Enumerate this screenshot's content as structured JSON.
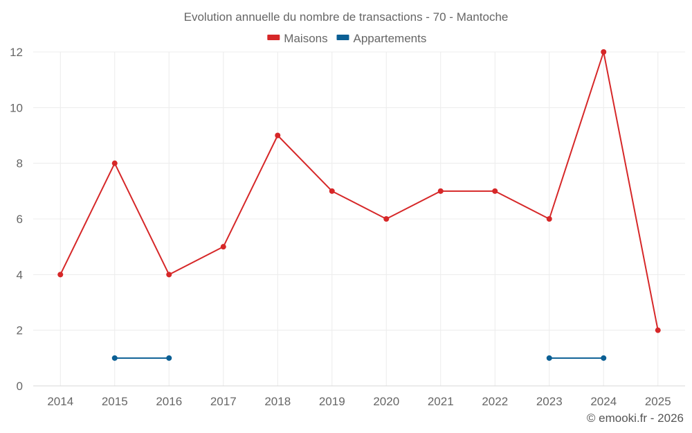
{
  "chart_data": {
    "type": "line",
    "title": "Evolution annuelle du nombre de transactions - 70 - Mantoche",
    "categories": [
      "2014",
      "2015",
      "2016",
      "2017",
      "2018",
      "2019",
      "2020",
      "2021",
      "2022",
      "2023",
      "2024",
      "2025"
    ],
    "series": [
      {
        "name": "Maisons",
        "color": "#d62728",
        "values": [
          4,
          8,
          4,
          5,
          9,
          7,
          6,
          7,
          7,
          6,
          12,
          2
        ]
      },
      {
        "name": "Appartements",
        "color": "#0b5f94",
        "values": [
          null,
          1,
          1,
          null,
          null,
          null,
          null,
          null,
          null,
          1,
          1,
          null
        ]
      }
    ],
    "xlabel": "",
    "ylabel": "",
    "ylim": [
      0,
      12
    ],
    "yticks": [
      0,
      2,
      4,
      6,
      8,
      10,
      12
    ],
    "legend_position": "top-center",
    "grid": true
  },
  "footer": {
    "credit": "© emooki.fr - 2026"
  }
}
